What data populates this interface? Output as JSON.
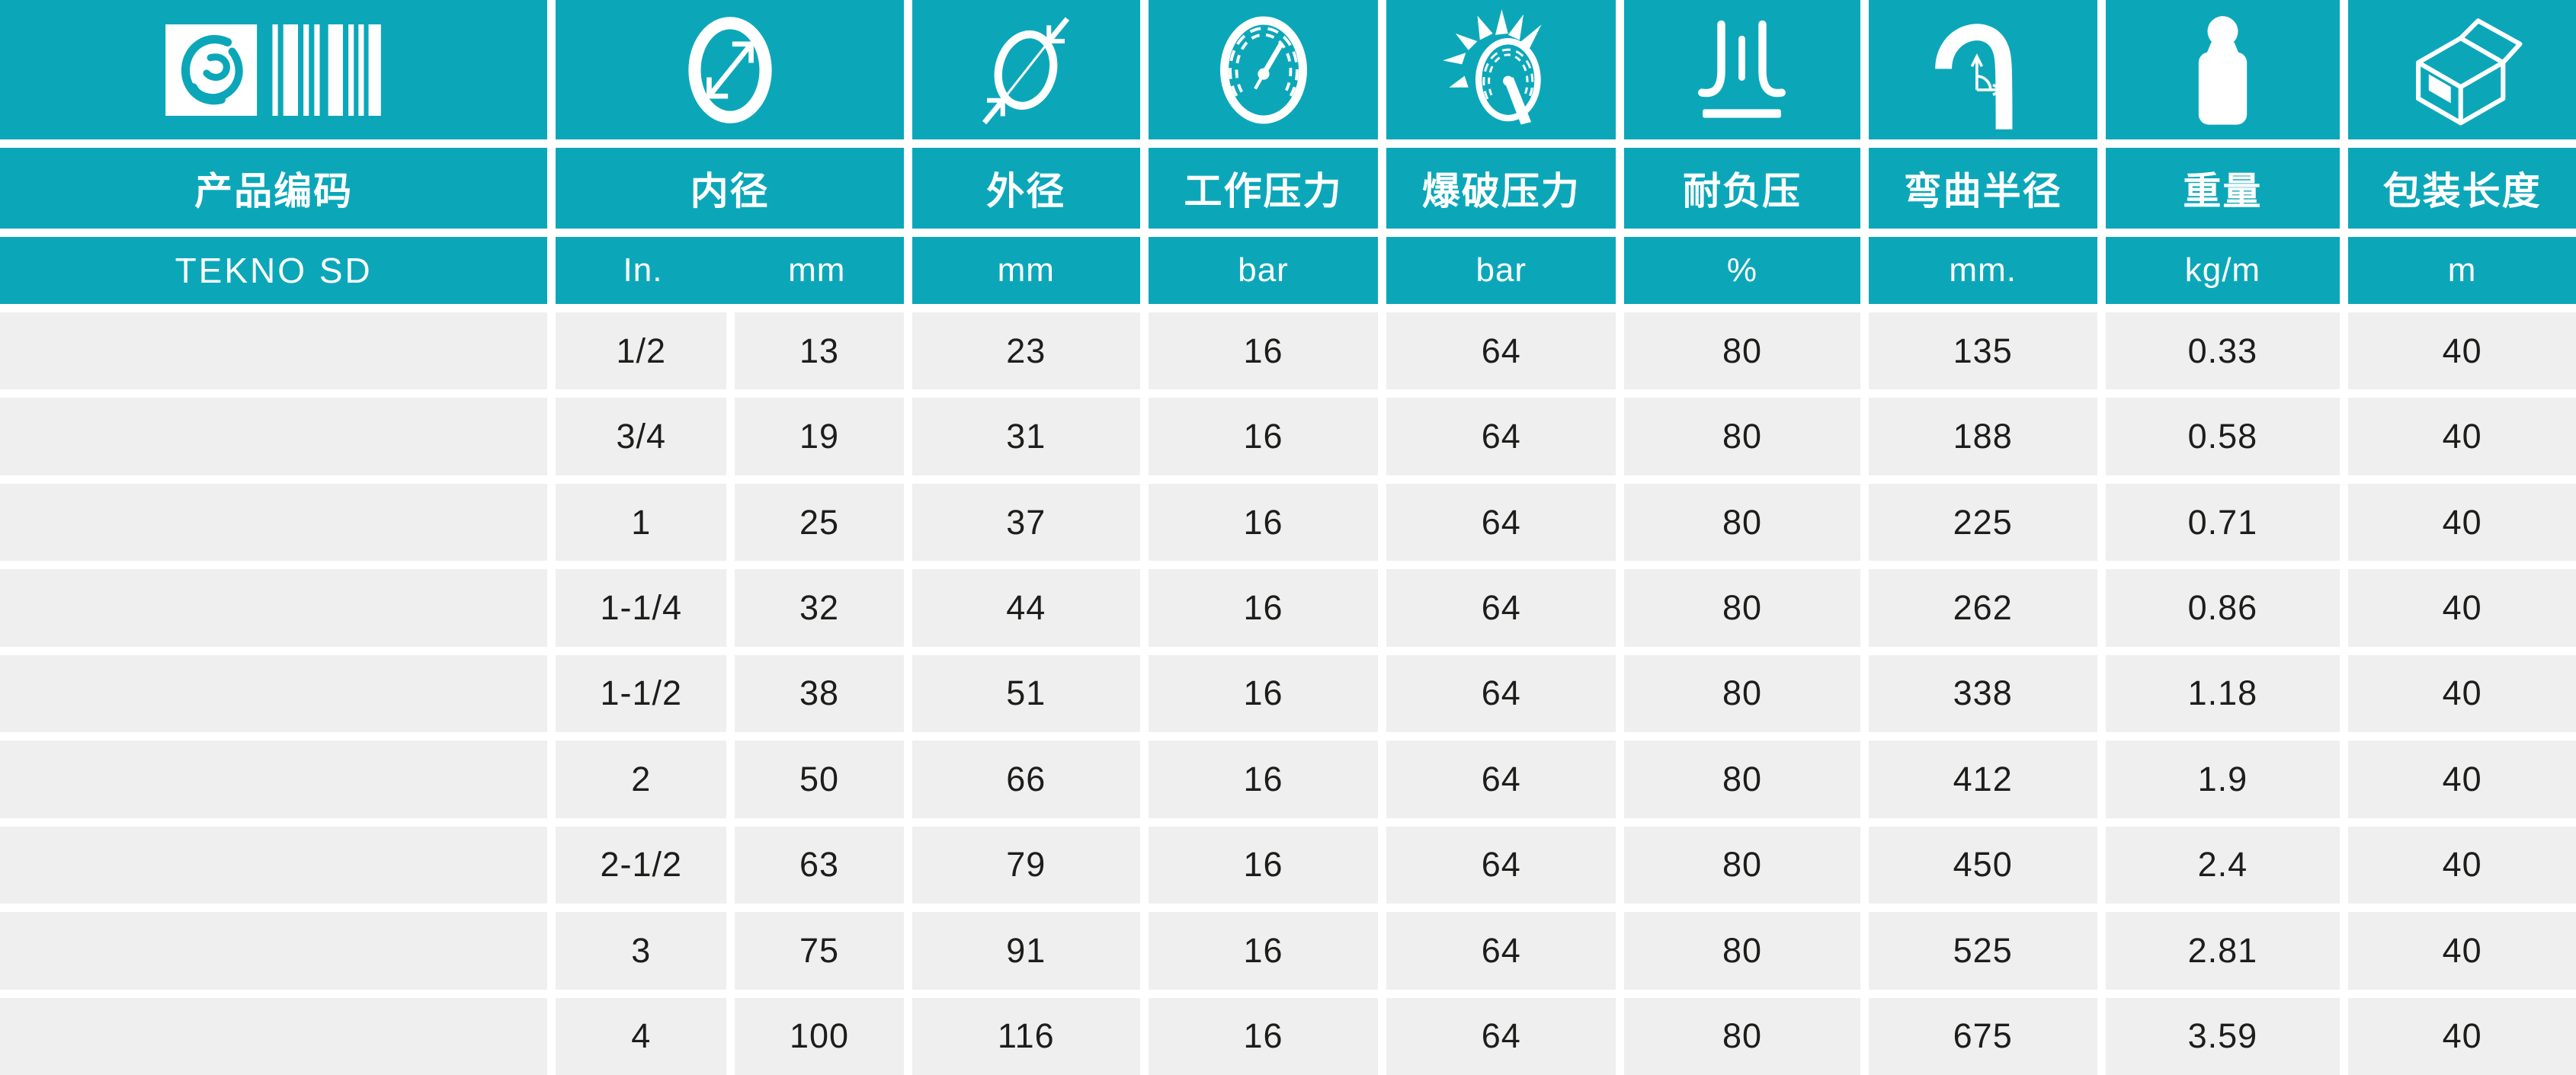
{
  "colors": {
    "teal": "#0ba7b9",
    "row_background": "#efefef",
    "text": "#1d1d1b",
    "gutter": "#ffffff"
  },
  "columns": {
    "product_code": {
      "label": "产品编码",
      "unit": "TEKNO SD",
      "icon": "logo-barcode-icon"
    },
    "inner_diameter": {
      "label": "内径",
      "units": [
        "In.",
        "mm"
      ],
      "icon": "inner-diameter-icon"
    },
    "outer_diameter": {
      "label": "外径",
      "unit": "mm",
      "icon": "outer-diameter-icon"
    },
    "working_pressure": {
      "label": "工作压力",
      "unit": "bar",
      "icon": "pressure-gauge-icon"
    },
    "burst_pressure": {
      "label": "爆破压力",
      "unit": "bar",
      "icon": "burst-gauge-icon"
    },
    "vacuum": {
      "label": "耐负压",
      "unit": "%",
      "icon": "vacuum-icon"
    },
    "bend_radius": {
      "label": "弯曲半径",
      "unit": "mm.",
      "icon": "bend-radius-icon"
    },
    "weight": {
      "label": "重量",
      "unit": "kg/m",
      "icon": "weight-icon"
    },
    "package_length": {
      "label": "包装长度",
      "unit": "m",
      "icon": "package-box-icon"
    }
  },
  "rows": [
    {
      "size_in": "1/2",
      "id_mm": "13",
      "od_mm": "23",
      "work_bar": "16",
      "burst_bar": "64",
      "vacuum_pct": "80",
      "bend_mm": "135",
      "weight_kgm": "0.33",
      "length_m": "40"
    },
    {
      "size_in": "3/4",
      "id_mm": "19",
      "od_mm": "31",
      "work_bar": "16",
      "burst_bar": "64",
      "vacuum_pct": "80",
      "bend_mm": "188",
      "weight_kgm": "0.58",
      "length_m": "40"
    },
    {
      "size_in": "1",
      "id_mm": "25",
      "od_mm": "37",
      "work_bar": "16",
      "burst_bar": "64",
      "vacuum_pct": "80",
      "bend_mm": "225",
      "weight_kgm": "0.71",
      "length_m": "40"
    },
    {
      "size_in": "1-1/4",
      "id_mm": "32",
      "od_mm": "44",
      "work_bar": "16",
      "burst_bar": "64",
      "vacuum_pct": "80",
      "bend_mm": "262",
      "weight_kgm": "0.86",
      "length_m": "40"
    },
    {
      "size_in": "1-1/2",
      "id_mm": "38",
      "od_mm": "51",
      "work_bar": "16",
      "burst_bar": "64",
      "vacuum_pct": "80",
      "bend_mm": "338",
      "weight_kgm": "1.18",
      "length_m": "40"
    },
    {
      "size_in": "2",
      "id_mm": "50",
      "od_mm": "66",
      "work_bar": "16",
      "burst_bar": "64",
      "vacuum_pct": "80",
      "bend_mm": "412",
      "weight_kgm": "1.9",
      "length_m": "40"
    },
    {
      "size_in": "2-1/2",
      "id_mm": "63",
      "od_mm": "79",
      "work_bar": "16",
      "burst_bar": "64",
      "vacuum_pct": "80",
      "bend_mm": "450",
      "weight_kgm": "2.4",
      "length_m": "40"
    },
    {
      "size_in": "3",
      "id_mm": "75",
      "od_mm": "91",
      "work_bar": "16",
      "burst_bar": "64",
      "vacuum_pct": "80",
      "bend_mm": "525",
      "weight_kgm": "2.81",
      "length_m": "40"
    },
    {
      "size_in": "4",
      "id_mm": "100",
      "od_mm": "116",
      "work_bar": "16",
      "burst_bar": "64",
      "vacuum_pct": "80",
      "bend_mm": "675",
      "weight_kgm": "3.59",
      "length_m": "40"
    }
  ]
}
